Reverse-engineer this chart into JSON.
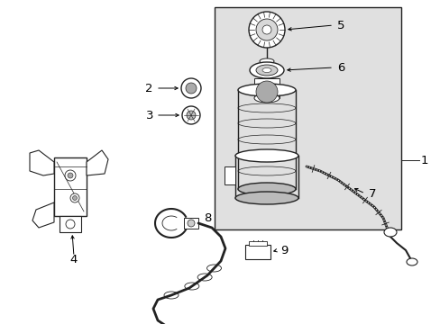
{
  "background_color": "#ffffff",
  "shaded_box_color": "#e0e0e0",
  "line_color": "#222222",
  "text_color": "#000000",
  "fig_width": 4.89,
  "fig_height": 3.6,
  "dpi": 100,
  "arrow_color": "#000000",
  "label_fontsize": 9.5
}
